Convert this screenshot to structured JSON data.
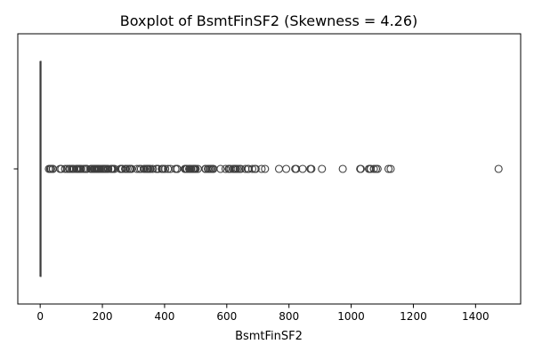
{
  "chart_data": {
    "type": "boxplot",
    "orientation": "horizontal",
    "title": "Boxplot of BsmtFinSF2 (Skewness = 4.26)",
    "xlabel": "BsmtFinSF2",
    "ylabel": "",
    "xlim": [
      -72,
      1545
    ],
    "xticks": [
      0,
      200,
      400,
      600,
      800,
      1000,
      1200,
      1400
    ],
    "yticks": [
      ""
    ],
    "grid": false,
    "colors": {
      "box": "#1f77b4",
      "line": "#3d3d3d"
    },
    "box": {
      "min": 0,
      "q1": 0,
      "median": 0,
      "q3": 0,
      "max": 0
    },
    "outliers": [
      28,
      32,
      35,
      40,
      41,
      64,
      68,
      80,
      87,
      93,
      96,
      102,
      105,
      108,
      116,
      117,
      120,
      123,
      127,
      128,
      132,
      139,
      144,
      147,
      149,
      150,
      163,
      165,
      168,
      173,
      174,
      176,
      177,
      180,
      181,
      182,
      184,
      186,
      188,
      191,
      196,
      201,
      203,
      206,
      208,
      211,
      215,
      219,
      228,
      230,
      231,
      234,
      239,
      258,
      259,
      263,
      264,
      273,
      276,
      281,
      287,
      288,
      290,
      294,
      311,
      319,
      324,
      334,
      336,
      341,
      344,
      345,
      348,
      352,
      354,
      362,
      374,
      375,
      380,
      391,
      393,
      396,
      402,
      411,
      419,
      435,
      440,
      441,
      465,
      468,
      469,
      472,
      479,
      480,
      483,
      486,
      492,
      494,
      497,
      499,
      500,
      507,
      531,
      532,
      539,
      543,
      547,
      551,
      555,
      557,
      580,
      596,
      606,
      608,
      612,
      620,
      624,
      627,
      630,
      635,
      641,
      645,
      660,
      668,
      670,
      682,
      690,
      693,
      712,
      723,
      768,
      791,
      820,
      823,
      844,
      869,
      872,
      906,
      973,
      1029,
      1031,
      1057,
      1061,
      1063,
      1073,
      1080,
      1085,
      1120,
      1127,
      1474
    ]
  }
}
